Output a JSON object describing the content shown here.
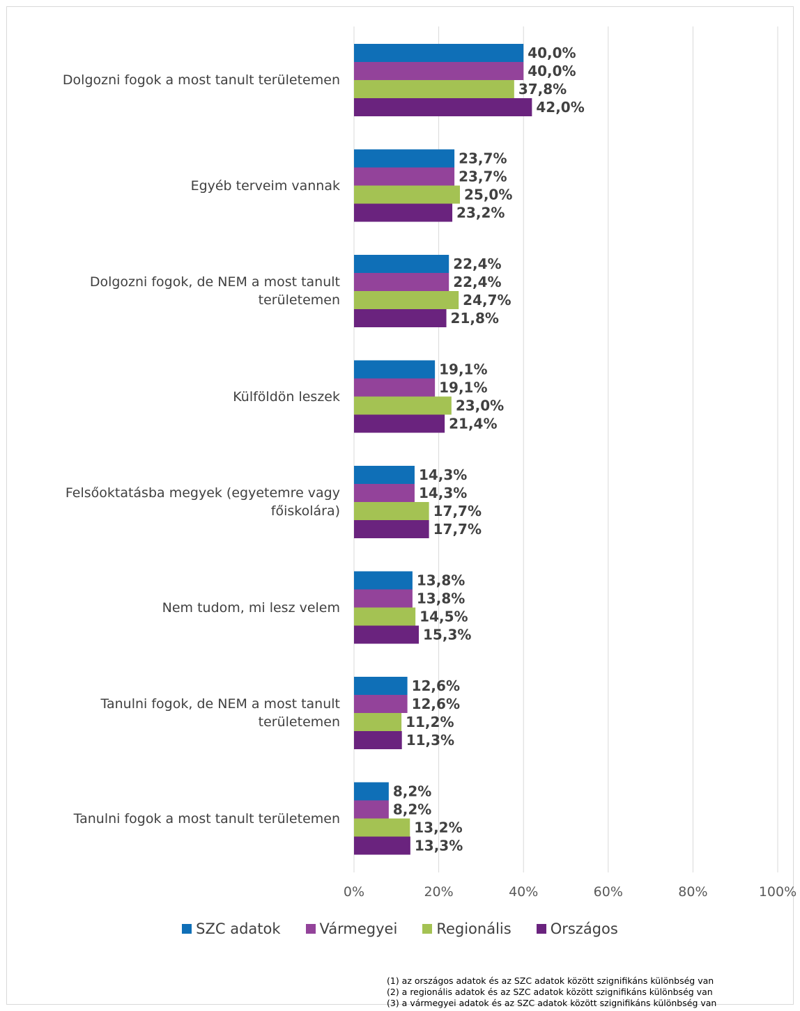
{
  "chart_data": {
    "type": "bar",
    "orientation": "horizontal",
    "categories": [
      "Dolgozni fogok a most tanult területemen",
      "Egyéb terveim vannak",
      "Dolgozni fogok, de NEM a most tanult területemen",
      "Külföldön leszek",
      "Felsőoktatásba megyek (egyetemre vagy főiskolára)",
      "Nem tudom, mi lesz velem",
      "Tanulni fogok, de NEM a most tanult területemen",
      "Tanulni fogok a most tanult területemen"
    ],
    "series": [
      {
        "name": "SZC adatok",
        "color": "#0f6fb7",
        "values": [
          40.0,
          23.7,
          22.4,
          19.1,
          14.3,
          13.8,
          12.6,
          8.2
        ],
        "labels": [
          "40,0%",
          "23,7%",
          "22,4%",
          "19,1%",
          "14,3%",
          "13,8%",
          "12,6%",
          "8,2%"
        ]
      },
      {
        "name": "Vármegyei",
        "color": "#93439a",
        "values": [
          40.0,
          23.7,
          22.4,
          19.1,
          14.3,
          13.8,
          12.6,
          8.2
        ],
        "labels": [
          "40,0%",
          "23,7%",
          "22,4%",
          "19,1%",
          "14,3%",
          "13,8%",
          "12,6%",
          "8,2%"
        ]
      },
      {
        "name": "Regionális",
        "color": "#a4c253",
        "values": [
          37.8,
          25.0,
          24.7,
          23.0,
          17.7,
          14.5,
          11.2,
          13.2
        ],
        "labels": [
          "37,8%",
          "25,0%",
          "24,7%",
          "23,0%",
          "17,7%",
          "14,5%",
          "11,2%",
          "13,2%"
        ]
      },
      {
        "name": "Országos",
        "color": "#6a237e",
        "values": [
          42.0,
          23.2,
          21.8,
          21.4,
          17.7,
          15.3,
          11.3,
          13.3
        ],
        "labels": [
          "42,0%",
          "23,2%",
          "21,8%",
          "21,4%",
          "17,7%",
          "15,3%",
          "11,3%",
          "13,3%"
        ]
      }
    ],
    "xlim": [
      0,
      100
    ],
    "xticks": [
      0,
      20,
      40,
      60,
      80,
      100
    ],
    "xtick_labels": [
      "0%",
      "20%",
      "40%",
      "60%",
      "80%",
      "100%"
    ],
    "grid": true,
    "legend_position": "bottom"
  },
  "notes": [
    "(1) az országos adatok és az SZC adatok között szignifikáns különbség van",
    "(2) a regionális adatok és az SZC adatok között szignifikáns különbség van",
    "(3) a vármegyei adatok és az SZC adatok között szignifikáns különbség van"
  ]
}
